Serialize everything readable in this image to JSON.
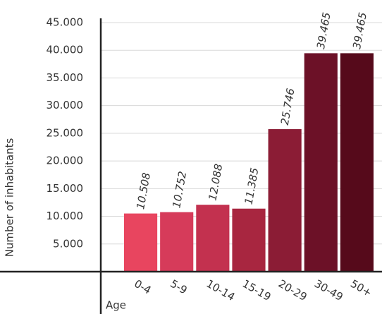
{
  "chart_data": {
    "type": "bar",
    "x_label": "Age",
    "y_label": "Number of inhabitants",
    "categories": [
      "0-4",
      "5-9",
      "10-14",
      "15-19",
      "20-29",
      "30-49",
      "50+"
    ],
    "values": [
      10508,
      10752,
      12088,
      11385,
      25746,
      39465,
      39465
    ],
    "value_labels": [
      "10.508",
      "10.752",
      "12.088",
      "11.385",
      "25.746",
      "39.465",
      "39.465"
    ],
    "colors": [
      "#e8455f",
      "#d63b5a",
      "#c3314f",
      "#a82640",
      "#8b1c35",
      "#6c1127",
      "#560a1b"
    ],
    "ylim": [
      0,
      45000
    ],
    "yticks": [
      {
        "value": 5000,
        "label": "5.000"
      },
      {
        "value": 10000,
        "label": "10.000"
      },
      {
        "value": 15000,
        "label": "15.000"
      },
      {
        "value": 20000,
        "label": "20.000"
      },
      {
        "value": 25000,
        "label": "25.000"
      },
      {
        "value": 30000,
        "label": "30.000"
      },
      {
        "value": 35000,
        "label": "35.000"
      },
      {
        "value": 40000,
        "label": "40.000"
      },
      {
        "value": 45000,
        "label": "45.000"
      }
    ],
    "grid": true
  }
}
